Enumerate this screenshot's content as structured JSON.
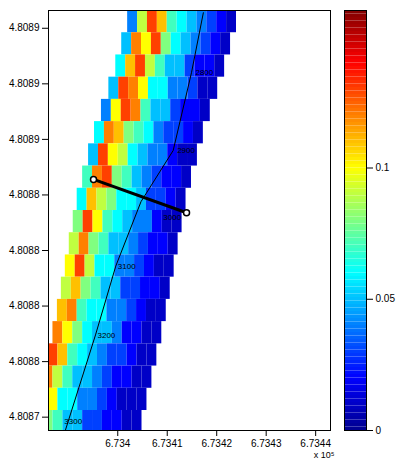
{
  "chart_data": {
    "type": "heatmap",
    "xlim": [
      6.73386,
      6.73443
    ],
    "xticks": [
      6.734,
      6.7341,
      6.7342,
      6.7343,
      6.7344
    ],
    "x_multiplier": "x 10⁵",
    "ylim": [
      4.808734,
      4.808923
    ],
    "yticks": [
      {
        "value": 4.808915,
        "label": "4.8089"
      },
      {
        "value": 4.80889,
        "label": "4.8089"
      },
      {
        "value": 4.808865,
        "label": "4.8089"
      },
      {
        "value": 4.80884,
        "label": "4.8088"
      },
      {
        "value": 4.808815,
        "label": "4.8088"
      },
      {
        "value": 4.80879,
        "label": "4.8088"
      },
      {
        "value": 4.808765,
        "label": "4.8088"
      },
      {
        "value": 4.80874,
        "label": "4.8087"
      }
    ],
    "cells": {
      "row_y": [
        4.808918,
        4.808908,
        4.808898,
        4.808888,
        4.808878,
        4.808868,
        4.808858,
        4.808848,
        4.808838,
        4.808828,
        4.808818,
        4.808808,
        4.808798,
        4.808788,
        4.808778,
        4.808768,
        4.808758,
        4.808748,
        4.808738
      ],
      "row_x_left": [
        6.73402,
        6.734008,
        6.733996,
        6.733982,
        6.733967,
        6.733953,
        6.733941,
        6.733929,
        6.733918,
        6.73391,
        6.733902,
        6.733894,
        6.733886,
        6.733878,
        6.733869,
        6.733859,
        6.733849,
        6.733839,
        6.733829
      ],
      "cell_width": 2e-05,
      "cell_height": 1e-05,
      "values": [
        [
          0.04,
          0.09,
          0.13,
          0.11,
          0.07,
          0.06,
          0.05,
          0.04,
          0.03,
          0.02,
          0.01
        ],
        [
          0.05,
          0.12,
          0.1,
          0.13,
          0.08,
          0.06,
          0.05,
          0.04,
          0.03,
          0.02,
          0.01
        ],
        [
          0.06,
          0.11,
          0.13,
          0.09,
          0.07,
          0.05,
          0.05,
          0.03,
          0.02,
          0.02,
          0.01
        ],
        [
          0.05,
          0.13,
          0.12,
          0.1,
          0.06,
          0.06,
          0.04,
          0.04,
          0.03,
          0.01,
          0.01
        ],
        [
          0.04,
          0.1,
          0.13,
          0.12,
          0.07,
          0.05,
          0.05,
          0.03,
          0.02,
          0.02,
          0.01
        ],
        [
          0.06,
          0.12,
          0.11,
          0.08,
          0.07,
          0.06,
          0.04,
          0.03,
          0.03,
          0.02,
          0.01
        ],
        [
          0.05,
          0.13,
          0.1,
          0.09,
          0.06,
          0.05,
          0.04,
          0.04,
          0.02,
          0.01,
          0.01
        ],
        [
          0.07,
          0.12,
          0.13,
          0.08,
          0.07,
          0.05,
          0.04,
          0.03,
          0.02,
          0.02,
          0.01
        ],
        [
          0.06,
          0.11,
          0.09,
          0.08,
          0.06,
          0.06,
          0.05,
          0.03,
          0.03,
          0.02,
          0.01
        ],
        [
          0.08,
          0.13,
          0.1,
          0.07,
          0.06,
          0.05,
          0.04,
          0.04,
          0.02,
          0.01,
          0.01
        ],
        [
          0.09,
          0.12,
          0.08,
          0.07,
          0.05,
          0.05,
          0.04,
          0.03,
          0.02,
          0.02,
          0.01
        ],
        [
          0.1,
          0.13,
          0.09,
          0.06,
          0.06,
          0.04,
          0.04,
          0.03,
          0.02,
          0.01,
          0.01
        ],
        [
          0.09,
          0.11,
          0.08,
          0.07,
          0.05,
          0.05,
          0.03,
          0.03,
          0.02,
          0.02,
          0.01
        ],
        [
          0.11,
          0.12,
          0.07,
          0.06,
          0.06,
          0.04,
          0.04,
          0.03,
          0.02,
          0.01,
          0.01
        ],
        [
          0.12,
          0.1,
          0.08,
          0.06,
          0.05,
          0.05,
          0.04,
          0.02,
          0.02,
          0.01,
          0.01
        ],
        [
          0.13,
          0.11,
          0.07,
          0.06,
          0.05,
          0.04,
          0.03,
          0.03,
          0.02,
          0.01,
          0.01
        ],
        [
          0.12,
          0.09,
          0.07,
          0.05,
          0.05,
          0.04,
          0.03,
          0.02,
          0.02,
          0.01,
          0.01
        ],
        [
          0.11,
          0.1,
          0.06,
          0.06,
          0.04,
          0.04,
          0.03,
          0.02,
          0.01,
          0.01,
          0.01
        ],
        [
          0.12,
          0.08,
          0.07,
          0.05,
          0.05,
          0.03,
          0.03,
          0.02,
          0.02,
          0.01,
          0.01
        ]
      ]
    },
    "colorbar": {
      "range": [
        0,
        0.16
      ],
      "ticks": [
        0,
        0.05,
        0.1
      ]
    },
    "centerline": {
      "x": [
        6.734173,
        6.734149,
        6.734112,
        6.734047,
        6.733996,
        6.733955,
        6.733894
      ],
      "y": [
        4.808922,
        4.808895,
        4.80886,
        4.808837,
        4.808808,
        4.808777,
        4.808734
      ]
    },
    "station_labels": [
      {
        "text": "2800",
        "x": 6.734153,
        "y": 4.808895
      },
      {
        "text": "2900",
        "x": 6.734116,
        "y": 4.80886
      },
      {
        "text": "3000",
        "x": 6.734088,
        "y": 4.80883
      },
      {
        "text": "3100",
        "x": 6.733996,
        "y": 4.808808
      },
      {
        "text": "3200",
        "x": 6.733955,
        "y": 4.808777
      },
      {
        "text": "3300",
        "x": 6.733888,
        "y": 4.808738
      }
    ],
    "cross_section": {
      "x": [
        6.733951,
        6.734139
      ],
      "y": [
        4.808847,
        4.808832
      ]
    }
  }
}
